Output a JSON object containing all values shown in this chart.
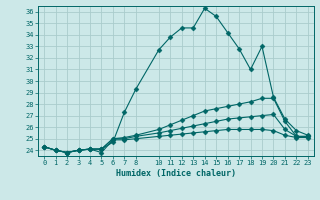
{
  "xlabel": "Humidex (Indice chaleur)",
  "ylabel": "",
  "bg_color": "#cce8e8",
  "grid_color": "#aacccc",
  "line_color": "#006666",
  "xlim": [
    -0.5,
    23.5
  ],
  "ylim": [
    23.5,
    36.5
  ],
  "yticks": [
    24,
    25,
    26,
    27,
    28,
    29,
    30,
    31,
    32,
    33,
    34,
    35,
    36
  ],
  "xticks": [
    0,
    1,
    2,
    3,
    4,
    5,
    6,
    7,
    8,
    10,
    11,
    12,
    13,
    14,
    15,
    16,
    17,
    18,
    19,
    20,
    21,
    22,
    23
  ],
  "series": [
    {
      "x": [
        0,
        1,
        2,
        3,
        4,
        5,
        6,
        7,
        8,
        10,
        11,
        12,
        13,
        14,
        15,
        16,
        17,
        18,
        19,
        20,
        21,
        22,
        23
      ],
      "y": [
        24.3,
        24.0,
        23.8,
        24.0,
        24.1,
        24.1,
        24.7,
        27.3,
        29.3,
        32.7,
        33.8,
        34.6,
        34.6,
        36.3,
        35.6,
        34.2,
        32.8,
        31.0,
        33.0,
        28.6,
        26.7,
        25.7,
        25.3
      ],
      "marker": "D",
      "markersize": 2.5
    },
    {
      "x": [
        0,
        1,
        2,
        3,
        4,
        5,
        6,
        7,
        8,
        10,
        11,
        12,
        13,
        14,
        15,
        16,
        17,
        18,
        19,
        20,
        21,
        22,
        23
      ],
      "y": [
        24.3,
        24.0,
        23.8,
        24.0,
        24.1,
        24.1,
        25.0,
        25.1,
        25.3,
        25.8,
        26.2,
        26.6,
        27.0,
        27.4,
        27.6,
        27.8,
        28.0,
        28.2,
        28.5,
        28.5,
        26.5,
        25.2,
        25.2
      ],
      "marker": "D",
      "markersize": 2.5
    },
    {
      "x": [
        0,
        1,
        2,
        3,
        4,
        5,
        6,
        7,
        8,
        10,
        11,
        12,
        13,
        14,
        15,
        16,
        17,
        18,
        19,
        20,
        21,
        22,
        23
      ],
      "y": [
        24.3,
        24.0,
        23.8,
        24.0,
        24.1,
        24.1,
        25.0,
        25.0,
        25.2,
        25.5,
        25.7,
        25.9,
        26.1,
        26.3,
        26.5,
        26.7,
        26.8,
        26.9,
        27.0,
        27.1,
        25.8,
        25.2,
        25.2
      ],
      "marker": "D",
      "markersize": 2.5
    },
    {
      "x": [
        0,
        1,
        2,
        3,
        4,
        5,
        6,
        7,
        8,
        10,
        11,
        12,
        13,
        14,
        15,
        16,
        17,
        18,
        19,
        20,
        21,
        22,
        23
      ],
      "y": [
        24.3,
        24.0,
        23.8,
        24.0,
        24.1,
        23.8,
        24.9,
        24.9,
        25.0,
        25.2,
        25.3,
        25.4,
        25.5,
        25.6,
        25.7,
        25.8,
        25.8,
        25.8,
        25.8,
        25.7,
        25.3,
        25.1,
        25.1
      ],
      "marker": "D",
      "markersize": 2.5
    }
  ]
}
